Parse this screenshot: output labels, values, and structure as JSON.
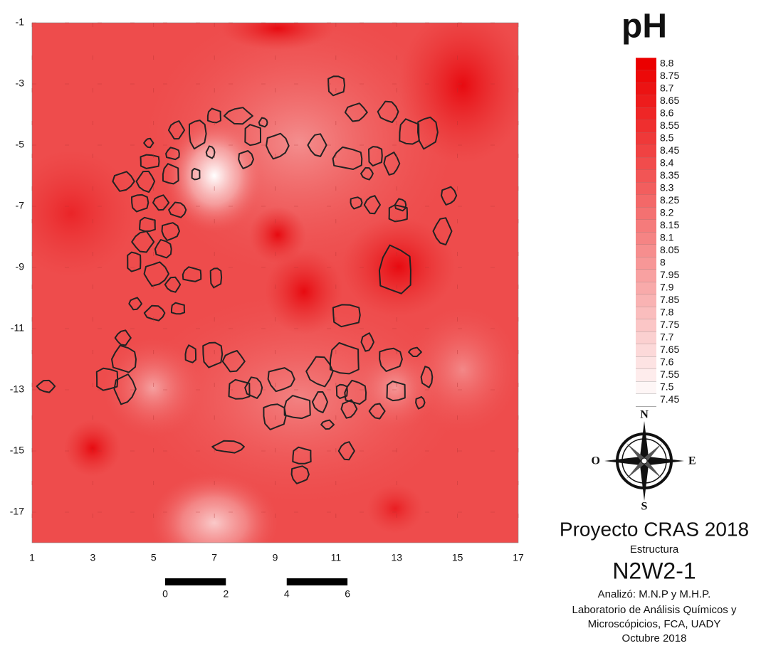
{
  "map": {
    "title": "pH",
    "x_ticks": [
      1,
      3,
      5,
      7,
      9,
      11,
      13,
      15,
      17
    ],
    "y_ticks": [
      -1,
      -3,
      -5,
      -7,
      -9,
      -11,
      -13,
      -15,
      -17
    ],
    "legend_levels": [
      8.8,
      8.75,
      8.7,
      8.65,
      8.6,
      8.55,
      8.5,
      8.45,
      8.4,
      8.35,
      8.3,
      8.25,
      8.2,
      8.15,
      8.1,
      8.05,
      8,
      7.95,
      7.9,
      7.85,
      7.8,
      7.75,
      7.7,
      7.65,
      7.6,
      7.55,
      7.5,
      7.45
    ],
    "scale_bar": [
      0,
      2,
      4,
      6
    ],
    "compass": {
      "north": "N",
      "east": "E",
      "south": "S",
      "west": "O"
    },
    "credits": {
      "project": "Proyecto CRAS 2018",
      "structure_label": "Estructura",
      "structure": "N2W2-1",
      "analyst": "Analizó: M.N.P y M.H.P.",
      "lab_line1": "Laboratorio de Análisis Químicos y",
      "lab_line2": "Microscópicios, FCA, UADY",
      "date": "Octubre 2018"
    }
  }
}
